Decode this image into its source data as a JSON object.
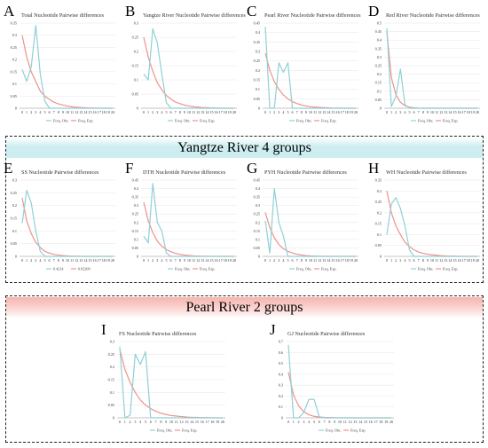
{
  "colors": {
    "obs": "#8fd0d6",
    "exp": "#f0928a",
    "grid": "#e6e6e6",
    "axis": "#999999",
    "yangtze_band": "#cdeef0",
    "pearl_band": "#f6b4ae"
  },
  "sections": {
    "yangtze": {
      "title": "Yangtze River 4 groups"
    },
    "pearl": {
      "title": "Pearl River 2 groups"
    }
  },
  "chart_data": [
    {
      "id": "A",
      "type": "line",
      "title": "Total Nucleotide Pairwise differences",
      "x": [
        0,
        1,
        2,
        3,
        4,
        5,
        6,
        7,
        8,
        9,
        10,
        11,
        12,
        13,
        14,
        15,
        16,
        17,
        18,
        19,
        20
      ],
      "ylim": [
        0,
        0.35
      ],
      "yticks": [
        "0",
        "0.05",
        "0.1",
        "0.15",
        "0.2",
        "0.25",
        "0.3",
        "0.35"
      ],
      "legend": [
        "Freq. Obs.",
        "Freq. Exp."
      ],
      "series": [
        {
          "name": "Freq. Obs.",
          "values": [
            0.16,
            0.11,
            0.17,
            0.34,
            0.14,
            0.03,
            0,
            0,
            0,
            0,
            0,
            0,
            0,
            0,
            0,
            0,
            0,
            0,
            0,
            0,
            0
          ]
        },
        {
          "name": "Freq. Exp.",
          "values": [
            0.3,
            0.21,
            0.15,
            0.11,
            0.07,
            0.05,
            0.036,
            0.025,
            0.018,
            0.013,
            0.009,
            0.006,
            0.004,
            0.003,
            0.002,
            0.001,
            0.001,
            0,
            0,
            0,
            0
          ]
        }
      ]
    },
    {
      "id": "B",
      "type": "line",
      "title": "Yangtze River Nucleotide Pairwise differences",
      "x": [
        0,
        1,
        2,
        3,
        4,
        5,
        6,
        7,
        8,
        9,
        10,
        11,
        12,
        13,
        14,
        15,
        16,
        17,
        18,
        19,
        20
      ],
      "ylim": [
        0,
        0.3
      ],
      "yticks": [
        "0",
        "0.05",
        "0.1",
        "0.15",
        "0.2",
        "0.25",
        "0.3"
      ],
      "legend": [
        "Freq. Obs.",
        "Freq. Exp."
      ],
      "series": [
        {
          "name": "Freq. Obs.",
          "values": [
            0.12,
            0.1,
            0.28,
            0.23,
            0.12,
            0.02,
            0,
            0,
            0,
            0,
            0,
            0,
            0,
            0,
            0,
            0,
            0,
            0,
            0,
            0,
            0
          ]
        },
        {
          "name": "Freq. Exp.",
          "values": [
            0.25,
            0.18,
            0.13,
            0.09,
            0.065,
            0.045,
            0.032,
            0.022,
            0.016,
            0.011,
            0.008,
            0.005,
            0.004,
            0.002,
            0.002,
            0.001,
            0.001,
            0,
            0,
            0,
            0
          ]
        }
      ]
    },
    {
      "id": "C",
      "type": "line",
      "title": "Pearl River Nucleotide Pairwise differences",
      "x": [
        0,
        1,
        2,
        3,
        4,
        5,
        6,
        7,
        8,
        9,
        10,
        11,
        12,
        13,
        14,
        15,
        16,
        17,
        18,
        19,
        20
      ],
      "ylim": [
        0,
        0.45
      ],
      "yticks": [
        "0",
        "0.05",
        "0.1",
        "0.15",
        "0.2",
        "0.25",
        "0.3",
        "0.35",
        "0.4",
        "0.45"
      ],
      "legend": [
        "Freq. Obs.",
        "Freq. Exp."
      ],
      "series": [
        {
          "name": "Freq. Obs.",
          "values": [
            0.43,
            0,
            0,
            0.24,
            0.19,
            0.24,
            0,
            0,
            0,
            0,
            0,
            0,
            0,
            0,
            0,
            0,
            0,
            0,
            0,
            0,
            0
          ]
        },
        {
          "name": "Freq. Exp.",
          "values": [
            0.29,
            0.2,
            0.14,
            0.1,
            0.07,
            0.05,
            0.035,
            0.025,
            0.017,
            0.012,
            0.008,
            0.006,
            0.004,
            0.003,
            0.002,
            0.001,
            0.001,
            0,
            0,
            0,
            0
          ]
        }
      ]
    },
    {
      "id": "D",
      "type": "line",
      "title": "Red River Nucleotide Pairwise differences",
      "x": [
        0,
        1,
        2,
        3,
        4,
        5,
        6,
        7,
        8,
        9,
        10,
        11,
        12,
        13,
        14,
        15,
        16,
        17,
        18,
        19,
        20
      ],
      "ylim": [
        0,
        0.5
      ],
      "yticks": [
        "0",
        "0.05",
        "0.1",
        "0.15",
        "0.2",
        "0.25",
        "0.3",
        "0.35",
        "0.4",
        "0.45",
        "0.5"
      ],
      "legend": [
        "Freq. Obs.",
        "Freq. Exp."
      ],
      "series": [
        {
          "name": "Freq. Obs.",
          "values": [
            0.47,
            0.01,
            0.07,
            0.23,
            0.02,
            0,
            0,
            0,
            0,
            0,
            0,
            0,
            0,
            0,
            0,
            0,
            0,
            0,
            0,
            0,
            0
          ]
        },
        {
          "name": "Freq. Exp.",
          "values": [
            0.45,
            0.18,
            0.08,
            0.035,
            0.015,
            0.006,
            0.003,
            0.001,
            0,
            0,
            0,
            0,
            0,
            0,
            0,
            0,
            0,
            0,
            0,
            0,
            0
          ]
        }
      ]
    },
    {
      "id": "E",
      "type": "line",
      "title": "SS Nucleotide Pairwise differences",
      "x": [
        0,
        1,
        2,
        3,
        4,
        5,
        6,
        7,
        8,
        9,
        10,
        11,
        12,
        13,
        14,
        15,
        16,
        17,
        18,
        19,
        20
      ],
      "ylim": [
        0,
        0.3
      ],
      "yticks": [
        "0",
        "0.05",
        "0.1",
        "0.15",
        "0.2",
        "0.25",
        "0.3"
      ],
      "legend": [
        "0.4214",
        "0.02209"
      ],
      "series": [
        {
          "name": "0.4214",
          "values": [
            0.13,
            0.26,
            0.21,
            0.1,
            0.02,
            0,
            0,
            0,
            0,
            0,
            0,
            0,
            0,
            0,
            0,
            0,
            0,
            0,
            0,
            0,
            0
          ]
        },
        {
          "name": "0.02209",
          "values": [
            0.23,
            0.14,
            0.09,
            0.055,
            0.035,
            0.02,
            0.013,
            0.008,
            0.005,
            0.003,
            0.002,
            0.001,
            0.001,
            0,
            0,
            0,
            0,
            0,
            0,
            0,
            0
          ]
        }
      ]
    },
    {
      "id": "F",
      "type": "line",
      "title": "DTH Nucleotide Pairwise differences",
      "x": [
        0,
        1,
        2,
        3,
        4,
        5,
        6,
        7,
        8,
        9,
        10,
        11,
        12,
        13,
        14,
        15,
        16,
        17,
        18,
        19,
        20
      ],
      "ylim": [
        0,
        0.45
      ],
      "yticks": [
        "0",
        "0.05",
        "0.1",
        "0.15",
        "0.2",
        "0.25",
        "0.3",
        "0.35",
        "0.4",
        "0.45"
      ],
      "legend": [
        "Freq. Obs.",
        "Freq. Exp."
      ],
      "series": [
        {
          "name": "Freq. Obs.",
          "values": [
            0.12,
            0.08,
            0.43,
            0.2,
            0.15,
            0.02,
            0,
            0,
            0,
            0,
            0,
            0,
            0,
            0,
            0,
            0,
            0,
            0,
            0,
            0,
            0
          ]
        },
        {
          "name": "Freq. Exp.",
          "values": [
            0.32,
            0.21,
            0.14,
            0.09,
            0.06,
            0.04,
            0.027,
            0.018,
            0.012,
            0.008,
            0.005,
            0.003,
            0.002,
            0.001,
            0.001,
            0,
            0,
            0,
            0,
            0,
            0
          ]
        }
      ]
    },
    {
      "id": "G",
      "type": "line",
      "title": "PYH Nucleotide Pairwise differences",
      "x": [
        0,
        1,
        2,
        3,
        4,
        5,
        6,
        7,
        8,
        9,
        10,
        11,
        12,
        13,
        14,
        15,
        16,
        17,
        18,
        19,
        20
      ],
      "ylim": [
        0,
        0.45
      ],
      "yticks": [
        "0",
        "0.05",
        "0.1",
        "0.15",
        "0.2",
        "0.25",
        "0.3",
        "0.35",
        "0.4",
        "0.45"
      ],
      "legend": [
        "Freq. Obs.",
        "Freq. Exp."
      ],
      "series": [
        {
          "name": "Freq. Obs.",
          "values": [
            0.21,
            0.02,
            0.4,
            0.2,
            0.12,
            0,
            0,
            0,
            0,
            0,
            0,
            0,
            0,
            0,
            0,
            0,
            0,
            0,
            0,
            0,
            0
          ]
        },
        {
          "name": "Freq. Exp.",
          "values": [
            0.26,
            0.17,
            0.11,
            0.07,
            0.045,
            0.03,
            0.02,
            0.013,
            0.008,
            0.005,
            0.003,
            0.002,
            0.001,
            0.001,
            0,
            0,
            0,
            0,
            0,
            0,
            0
          ]
        }
      ]
    },
    {
      "id": "H",
      "type": "line",
      "title": "WH Nucleotide Pairwise differences",
      "x": [
        0,
        1,
        2,
        3,
        4,
        5,
        6,
        7,
        8,
        9,
        10,
        11,
        12,
        13,
        14,
        15,
        16,
        17,
        18,
        19,
        20
      ],
      "ylim": [
        0,
        0.35
      ],
      "yticks": [
        "0",
        "0.05",
        "0.1",
        "0.15",
        "0.2",
        "0.25",
        "0.3",
        "0.35"
      ],
      "legend": [
        "Freq. Obs.",
        "Freq. Exp."
      ],
      "series": [
        {
          "name": "Freq. Obs.",
          "values": [
            0.1,
            0.24,
            0.27,
            0.22,
            0.14,
            0.03,
            0,
            0,
            0,
            0,
            0,
            0,
            0,
            0,
            0,
            0,
            0,
            0,
            0,
            0,
            0
          ]
        },
        {
          "name": "Freq. Exp.",
          "values": [
            0.3,
            0.2,
            0.14,
            0.1,
            0.065,
            0.045,
            0.03,
            0.02,
            0.014,
            0.01,
            0.007,
            0.005,
            0.003,
            0.002,
            0.001,
            0.001,
            0,
            0,
            0,
            0,
            0
          ]
        }
      ]
    },
    {
      "id": "I",
      "type": "line",
      "title": "FS Nucleotide Pairwise differences",
      "x": [
        0,
        1,
        2,
        3,
        4,
        5,
        6,
        7,
        8,
        9,
        10,
        11,
        12,
        13,
        14,
        15,
        16,
        17,
        18,
        19,
        20
      ],
      "ylim": [
        0,
        0.3
      ],
      "yticks": [
        "0",
        "0.05",
        "0.1",
        "0.15",
        "0.2",
        "0.25",
        "0.3"
      ],
      "legend": [
        "Freq. Obs.",
        "Freq. Exp."
      ],
      "series": [
        {
          "name": "Freq. Obs.",
          "values": [
            0.28,
            0,
            0.01,
            0.25,
            0.21,
            0.26,
            0,
            0,
            0,
            0,
            0,
            0,
            0,
            0,
            0,
            0,
            0,
            0,
            0,
            0,
            0
          ]
        },
        {
          "name": "Freq. Exp.",
          "values": [
            0.27,
            0.19,
            0.14,
            0.1,
            0.07,
            0.05,
            0.036,
            0.026,
            0.018,
            0.013,
            0.009,
            0.007,
            0.005,
            0.003,
            0.002,
            0.002,
            0.001,
            0.001,
            0,
            0,
            0
          ]
        }
      ]
    },
    {
      "id": "J",
      "type": "line",
      "title": "GJ Nucleotide Pairwise differences",
      "x": [
        0,
        1,
        2,
        3,
        4,
        5,
        6,
        7,
        8,
        9,
        10,
        11,
        12,
        13,
        14,
        15,
        16,
        17,
        18,
        19,
        20
      ],
      "ylim": [
        0,
        0.7
      ],
      "yticks": [
        "0",
        "0.1",
        "0.2",
        "0.3",
        "0.4",
        "0.5",
        "0.6",
        "0.7"
      ],
      "legend": [
        "Freq. Obs.",
        "Freq. Exp."
      ],
      "series": [
        {
          "name": "Freq. Obs.",
          "values": [
            0.67,
            0,
            0,
            0.05,
            0.17,
            0.17,
            0.01,
            0,
            0,
            0,
            0,
            0,
            0,
            0,
            0,
            0,
            0,
            0,
            0,
            0,
            0
          ]
        },
        {
          "name": "Freq. Exp.",
          "values": [
            0.42,
            0.21,
            0.11,
            0.055,
            0.028,
            0.014,
            0.007,
            0.004,
            0.002,
            0.001,
            0,
            0,
            0,
            0,
            0,
            0,
            0,
            0,
            0,
            0,
            0
          ]
        }
      ]
    }
  ]
}
